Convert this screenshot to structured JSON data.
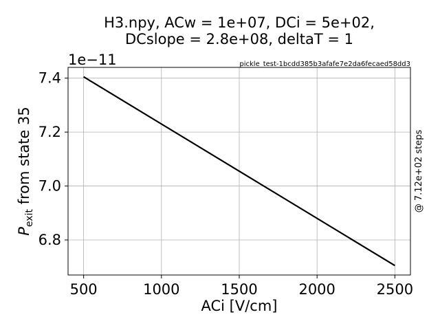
{
  "chart_data": {
    "type": "line",
    "title_line1": "H3.npy, ACw = 1e+07,  DCi = 5e+02,",
    "title_line2": "DCslope = 2.8e+08,  deltaT = 1",
    "annotation": "pickle_test-1bcdd385b3afafe7e2da6fecaed58dd3",
    "right_label": "@ 7.12e+02 steps",
    "xlabel": "ACi [V/cm]",
    "ylabel_prefix": "P",
    "ylabel_subscript": "exit",
    "ylabel_suffix": " from state 35",
    "y_offset_label": "1e−11",
    "xlim": [
      400,
      2600
    ],
    "ylim": [
      6.67,
      7.44
    ],
    "x_ticks": [
      500,
      1000,
      1500,
      2000,
      2500
    ],
    "x_tick_labels": [
      "500",
      "1000",
      "1500",
      "2000",
      "2500"
    ],
    "y_ticks": [
      6.8,
      7.0,
      7.2,
      7.4
    ],
    "y_tick_labels": [
      "6.8",
      "7.0",
      "7.2",
      "7.4"
    ],
    "grid": true,
    "series": [
      {
        "color": "#000000",
        "x": [
          500,
          2500
        ],
        "y": [
          7.405,
          6.705
        ]
      }
    ]
  }
}
